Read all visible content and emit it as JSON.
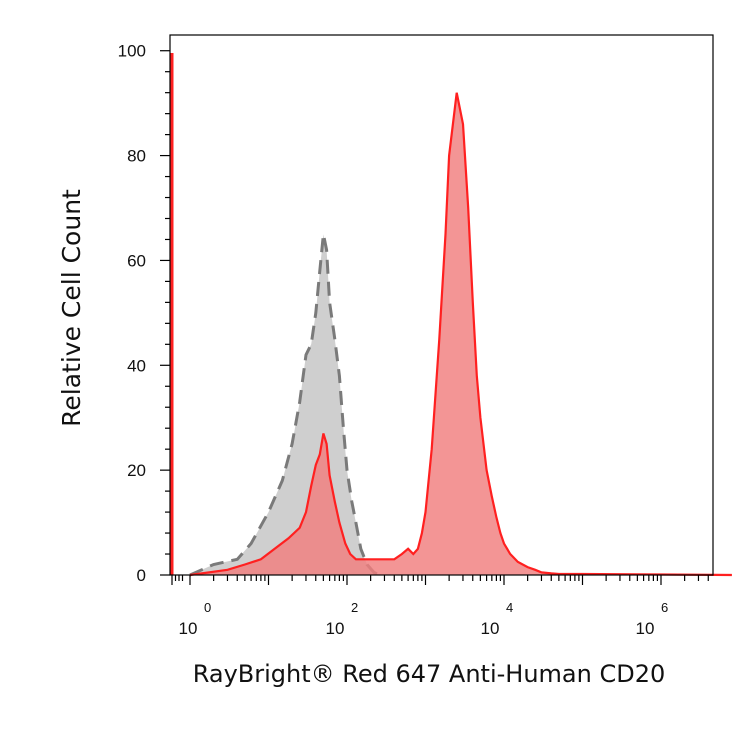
{
  "chart_data": {
    "type": "area",
    "xlabel": "RayBright® Red 647 Anti-Human CD20",
    "ylabel": "Relative Cell Count",
    "x_scale": "biexponential",
    "ylim": [
      0,
      103
    ],
    "y_ticks": [
      "0",
      "20",
      "40",
      "60",
      "80",
      "100"
    ],
    "x_ticks": [
      {
        "base": "10",
        "exp": "0"
      },
      {
        "base": "10",
        "exp": "2"
      },
      {
        "base": "10",
        "exp": "4"
      },
      {
        "base": "10",
        "exp": "6"
      }
    ],
    "series": [
      {
        "style": "dashed",
        "stroke": "#7a7a7a",
        "fill": "#cfcfcf",
        "x": [
          1,
          2,
          4,
          6,
          10,
          15,
          20,
          25,
          30,
          35,
          40,
          45,
          50,
          55,
          60,
          70,
          80,
          90,
          100,
          115,
          130,
          150,
          180,
          220,
          260
        ],
        "y": [
          0,
          2,
          3,
          6,
          12,
          18,
          25,
          33,
          42,
          44,
          50,
          58,
          65,
          62,
          52,
          45,
          38,
          28,
          20,
          14,
          10,
          5,
          2,
          0.5,
          0
        ]
      },
      {
        "style": "solid",
        "stroke": "#ff2020",
        "fill": "#f07e7e",
        "x": [
          1,
          3,
          5,
          8,
          12,
          18,
          25,
          30,
          35,
          40,
          45,
          50,
          55,
          60,
          70,
          80,
          95,
          110,
          130,
          160,
          200,
          250,
          300,
          400,
          500,
          600,
          700,
          800,
          900,
          1000,
          1200,
          1500,
          1800,
          2000,
          2500,
          3000,
          3500,
          4000,
          4500,
          5000,
          6000,
          7000,
          8000,
          9000,
          10000,
          12000,
          15000,
          20000,
          25000,
          30000,
          40000,
          50000,
          70000,
          100000,
          1000000,
          8000000
        ],
        "y": [
          0,
          1,
          2,
          3,
          5,
          7,
          9,
          12,
          17,
          21,
          23,
          27,
          25,
          19,
          14,
          10,
          6,
          4,
          3,
          3,
          3,
          3,
          3,
          3,
          4,
          5,
          4,
          5,
          8,
          12,
          24,
          45,
          65,
          80,
          92,
          86,
          70,
          52,
          38,
          30,
          20,
          15,
          11,
          8,
          6,
          4,
          2.5,
          1.5,
          1,
          0.5,
          0.3,
          0.2,
          0.2,
          0.2,
          0.1,
          0
        ]
      }
    ]
  }
}
